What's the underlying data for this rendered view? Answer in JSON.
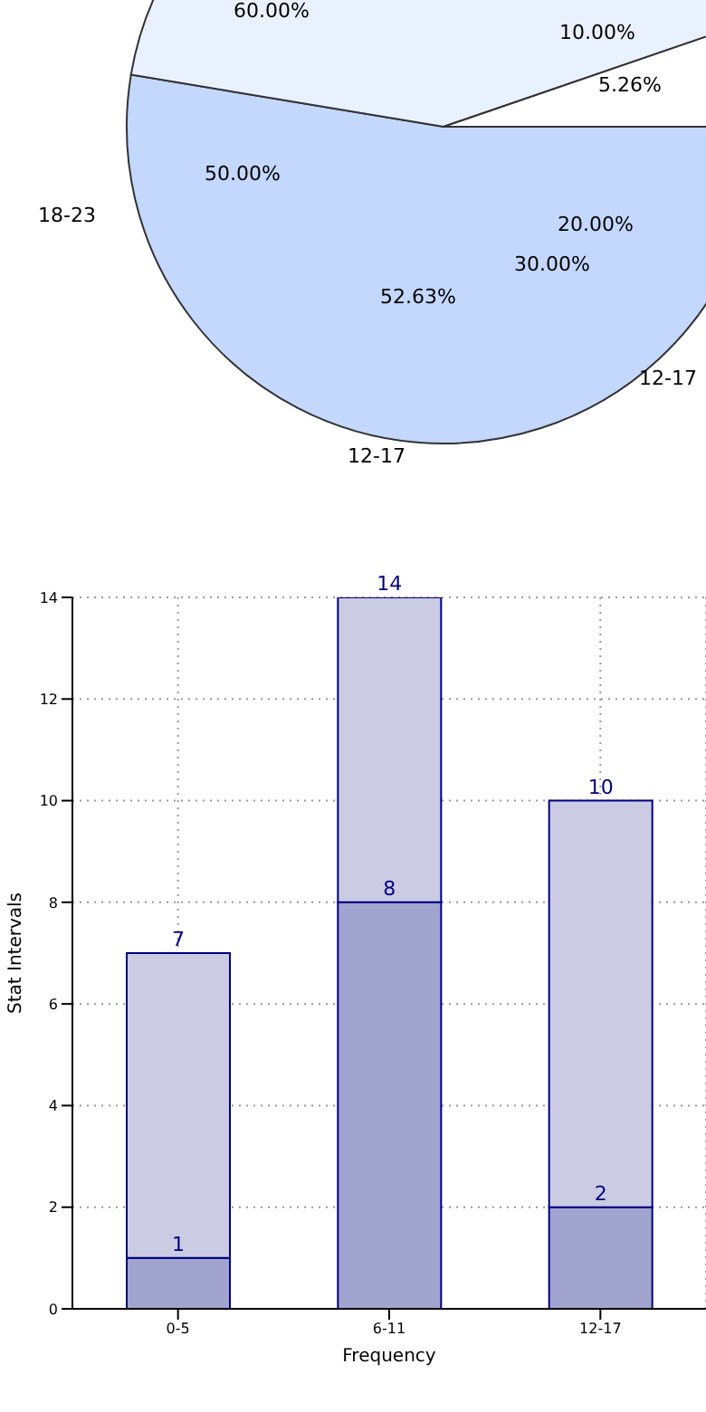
{
  "chart_data": [
    {
      "type": "pie",
      "categories": [
        null,
        null,
        null
      ],
      "values": [
        52.63,
        42.11,
        5.26
      ],
      "colors": [
        "#c4d8fe",
        "#eaf1fe",
        "#ffffff"
      ],
      "value_labels": [
        "52.63%",
        null,
        "5.26%"
      ],
      "annotations": [
        "60.00%",
        "10.00%",
        "50.00%",
        "20.00%",
        "30.00%",
        "18-23",
        "12-17",
        "12-17"
      ]
    },
    {
      "type": "bar",
      "xlabel": "Frequency",
      "ylabel": "Stat Intervals",
      "categories": [
        "0-5",
        "6-11",
        "12-17"
      ],
      "series": [
        {
          "color": "#a2a4d0",
          "values": [
            1,
            8,
            2
          ],
          "value_labels": [
            "1",
            "8",
            "2"
          ]
        },
        {
          "color": "#cbcce4",
          "values": [
            6,
            6,
            8
          ]
        }
      ],
      "stacked": true,
      "totals": [
        "7",
        "14",
        "10"
      ],
      "ylim": [
        0,
        14
      ],
      "yticks": [
        0,
        2,
        4,
        6,
        8,
        10,
        12,
        14
      ],
      "grid": true,
      "legend": false
    }
  ]
}
